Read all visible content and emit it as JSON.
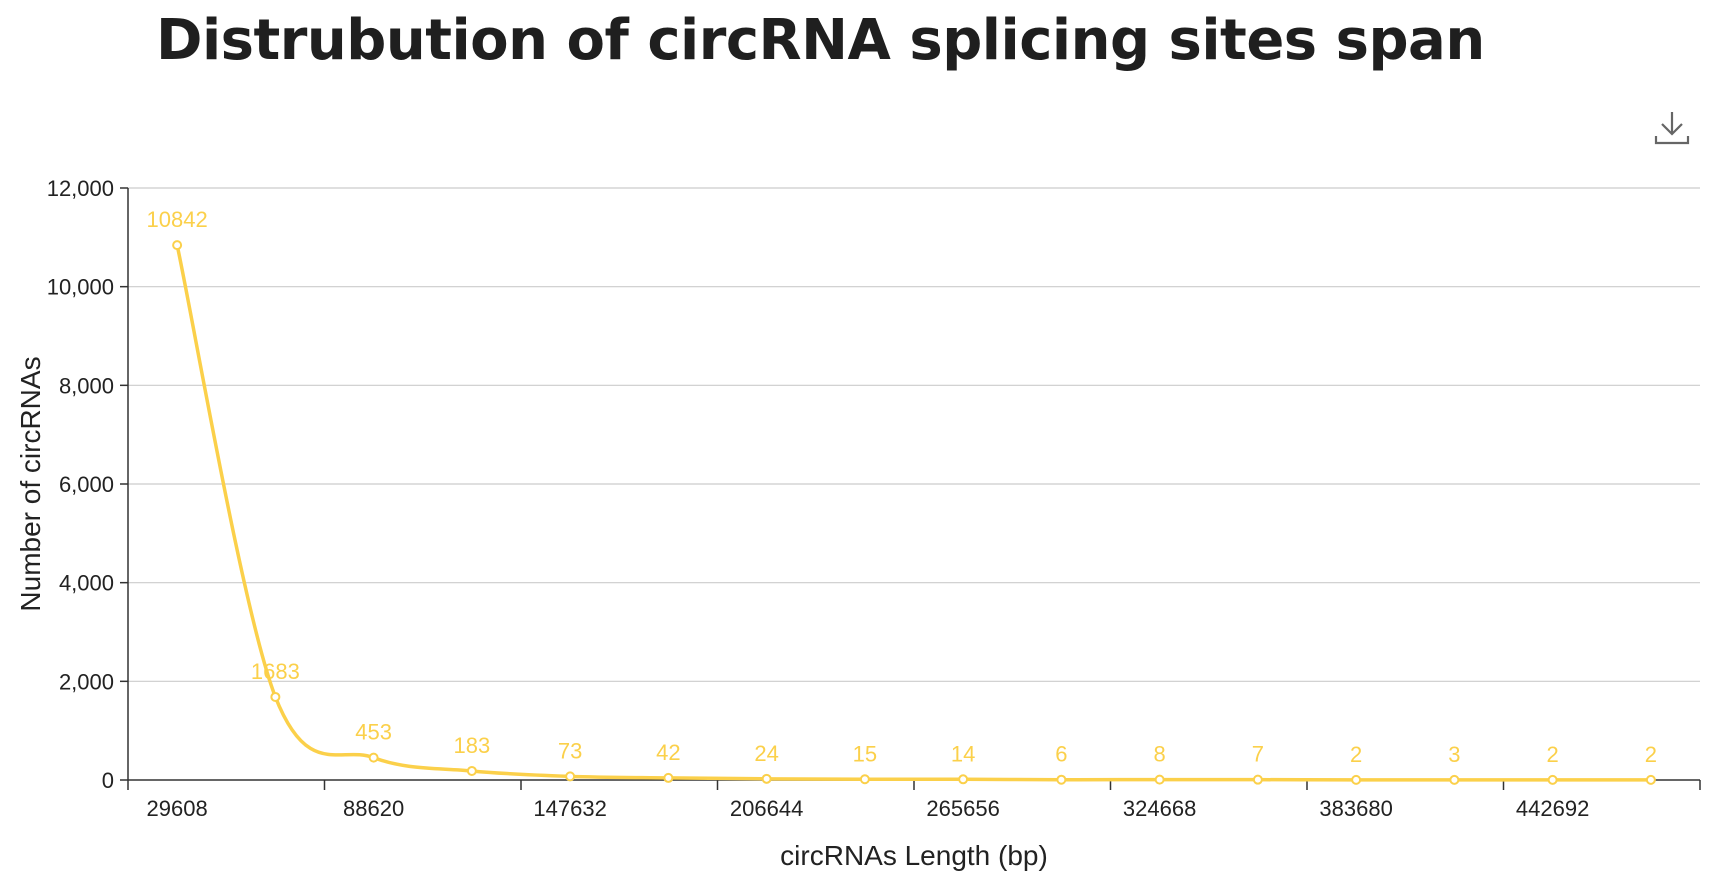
{
  "title": "Distrubution of circRNA splicing sites span",
  "toolbar": {
    "download_icon": "download-icon"
  },
  "colors": {
    "series": "#fbd04a",
    "axis": "#333333",
    "grid": "#cccccc",
    "text": "#222222"
  },
  "chart_data": {
    "type": "line",
    "smooth": true,
    "title": "Distrubution of circRNA splicing sites span",
    "xlabel": "circRNAs Length (bp)",
    "ylabel": "Number of circRNAs",
    "x": [
      "29608",
      "59114",
      "88620",
      "118126",
      "147632",
      "177138",
      "206644",
      "236150",
      "265656",
      "295162",
      "324668",
      "354174",
      "383680",
      "413186",
      "442692",
      "472198"
    ],
    "x_tick_labels": [
      "29608",
      "88620",
      "147632",
      "206644",
      "265656",
      "324668",
      "383680",
      "442692"
    ],
    "values": [
      10842,
      1683,
      453,
      183,
      73,
      42,
      24,
      15,
      14,
      6,
      8,
      7,
      2,
      3,
      2,
      2
    ],
    "ylim": [
      0,
      12000
    ],
    "y_ticks": [
      "0",
      "2,000",
      "4,000",
      "6,000",
      "8,000",
      "10,000",
      "12,000"
    ],
    "grid": true,
    "data_labels": true
  }
}
